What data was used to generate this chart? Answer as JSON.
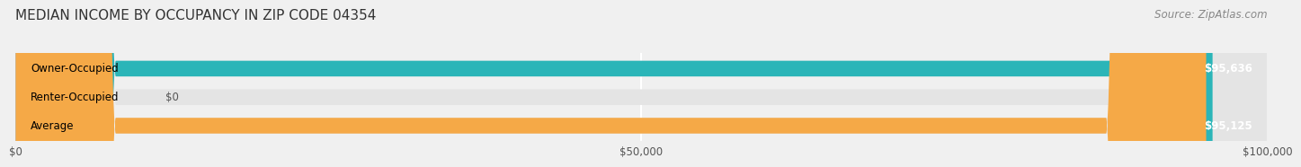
{
  "title": "MEDIAN INCOME BY OCCUPANCY IN ZIP CODE 04354",
  "source": "Source: ZipAtlas.com",
  "categories": [
    "Owner-Occupied",
    "Renter-Occupied",
    "Average"
  ],
  "values": [
    95636,
    0,
    95125
  ],
  "bar_colors": [
    "#2bb5b8",
    "#c5b8d8",
    "#f5a947"
  ],
  "bar_labels": [
    "$95,636",
    "$0",
    "$95,125"
  ],
  "xlim": [
    0,
    100000
  ],
  "xticks": [
    0,
    50000,
    100000
  ],
  "xtick_labels": [
    "$0",
    "$50,000",
    "$100,000"
  ],
  "background_color": "#f0f0f0",
  "bar_bg_color": "#e4e4e4",
  "title_fontsize": 11,
  "label_fontsize": 8.5,
  "tick_fontsize": 8.5,
  "source_fontsize": 8.5
}
